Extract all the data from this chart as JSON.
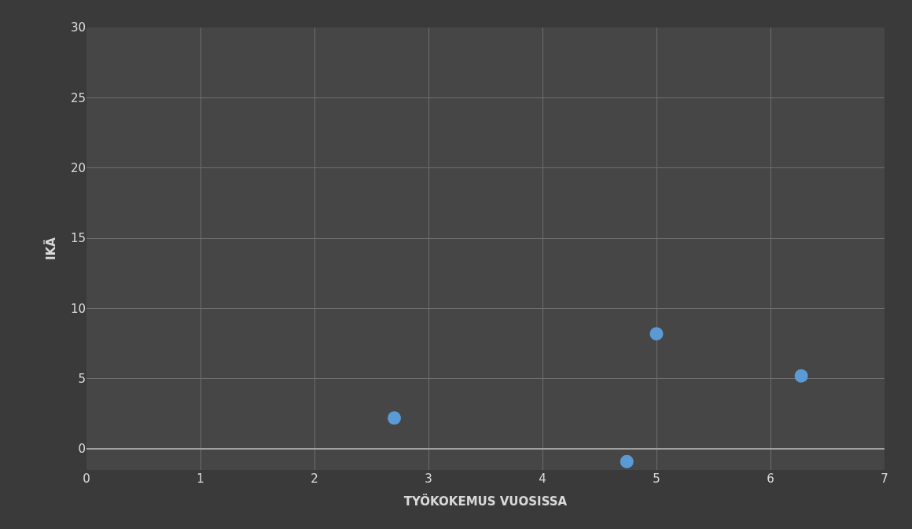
{
  "chart_data": {
    "type": "scatter",
    "xlabel": "TYÖKOKEMUS VUOSISSA",
    "ylabel": "IKÄ",
    "x": [
      2.7,
      5.0,
      6.27,
      4.74
    ],
    "values": [
      2.2,
      8.2,
      5.2,
      -0.9
    ],
    "color": "#5b9bd5",
    "marker": "circle",
    "grid": true,
    "xlim": [
      0,
      7
    ],
    "xticks": [
      0,
      1,
      2,
      3,
      4,
      5,
      6,
      7
    ],
    "ylim": [
      -1.5,
      30
    ],
    "yticks": [
      0,
      5,
      10,
      15,
      20,
      25,
      30
    ]
  }
}
